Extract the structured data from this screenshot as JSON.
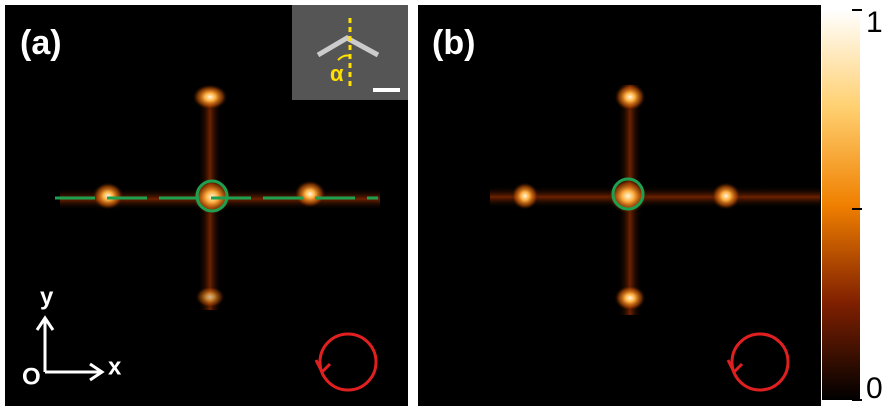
{
  "panels": [
    {
      "label": "(a)"
    },
    {
      "label": "(b)"
    }
  ],
  "axes": {
    "origin": "O",
    "x": "x",
    "y": "y"
  },
  "inset": {
    "angle": "α"
  },
  "colorbar": {
    "max": "1",
    "min": "0"
  }
}
